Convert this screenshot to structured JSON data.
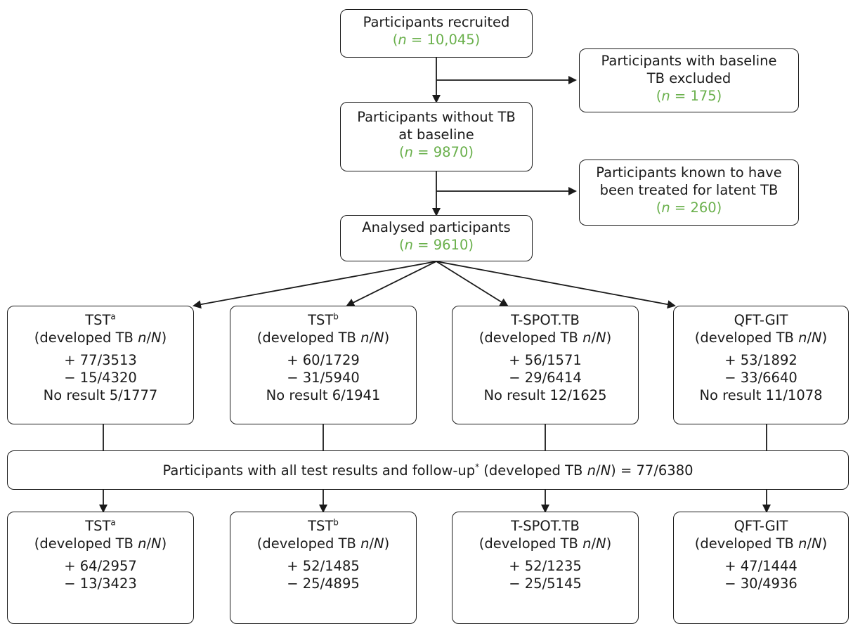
{
  "recruited": {
    "label": "Participants recruited",
    "count": "10,045"
  },
  "baseline_excluded": {
    "line1": "Participants with baseline",
    "line2": "TB excluded",
    "count": "175"
  },
  "without_tb": {
    "line1": "Participants without TB",
    "line2": "at baseline",
    "count": "9870"
  },
  "treated_latent": {
    "line1": "Participants known to have",
    "line2": "been treated for latent TB",
    "count": "260"
  },
  "analysed": {
    "label": "Analysed participants",
    "count": "9610"
  },
  "n_prefix": "(",
  "n_var": "n",
  "n_eq": " = ",
  "n_suffix": ")",
  "developed_prefix": "(developed TB ",
  "developed_n": "n",
  "slash": "/",
  "developed_N": "N",
  "developed_suffix": ")",
  "tests_top": [
    {
      "name": "TST",
      "sup": "a",
      "pos": "+ 77/3513",
      "neg": "− 15/4320",
      "noresult": "No result 5/1777"
    },
    {
      "name": "TST",
      "sup": "b",
      "pos": "+ 60/1729",
      "neg": "− 31/5940",
      "noresult": "No result 6/1941"
    },
    {
      "name": "T-SPOT.TB",
      "sup": "",
      "pos": "+ 56/1571",
      "neg": "− 29/6414",
      "noresult": "No result 12/1625"
    },
    {
      "name": "QFT-GIT",
      "sup": "",
      "pos": "+ 53/1892",
      "neg": "− 33/6640",
      "noresult": "No result 11/1078"
    }
  ],
  "all_results": {
    "text": "Participants with all test results and follow-up",
    "star": "*",
    "developed": " (developed TB ",
    "value": " = 77/6380"
  },
  "tests_bottom": [
    {
      "name": "TST",
      "sup": "a",
      "pos": "+ 64/2957",
      "neg": "− 13/3423"
    },
    {
      "name": "TST",
      "sup": "b",
      "pos": "+ 52/1485",
      "neg": "− 25/4895"
    },
    {
      "name": "T-SPOT.TB",
      "sup": "",
      "pos": "+ 52/1235",
      "neg": "− 25/5145"
    },
    {
      "name": "QFT-GIT",
      "sup": "",
      "pos": "+ 47/1444",
      "neg": "− 30/4936"
    }
  ],
  "colors": {
    "accent_green": "#6ab04c",
    "border": "#1a1a1a"
  }
}
